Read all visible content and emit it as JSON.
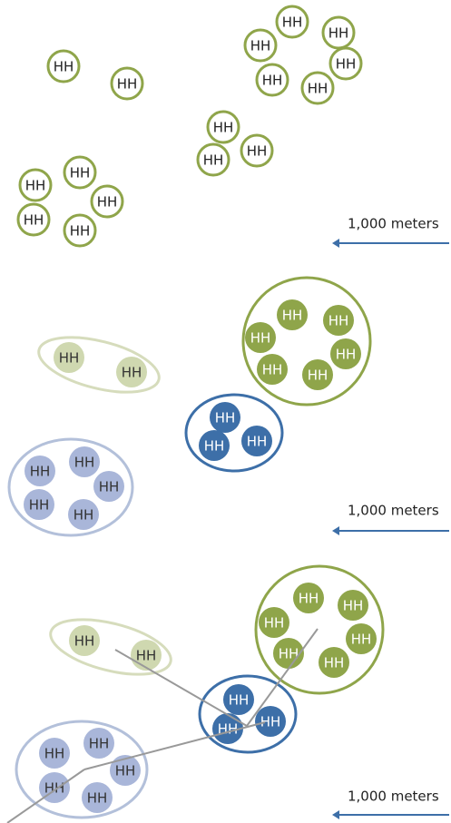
{
  "panels": [
    {
      "nodes": [
        "HH",
        "HH",
        "HH",
        "HH",
        "HH",
        "HH",
        "HH",
        "HH",
        "HH",
        "HH",
        "HH",
        "HH",
        "HH",
        "HH",
        "HH",
        "HH"
      ],
      "scale_label": "1,000 meters"
    },
    {
      "nodes": [
        "HH",
        "HH",
        "HH",
        "HH",
        "HH",
        "HH",
        "HH",
        "HH",
        "HH",
        "HH",
        "HH",
        "HH",
        "HH",
        "HH",
        "HH",
        "HH"
      ],
      "scale_label": "1,000 meters"
    },
    {
      "nodes": [
        "HH",
        "HH",
        "HH",
        "HH",
        "HH",
        "HH",
        "HH",
        "HH",
        "HH",
        "HH",
        "HH",
        "HH",
        "HH",
        "HH",
        "HH",
        "HH"
      ],
      "scale_label": "1,000 meters"
    }
  ]
}
